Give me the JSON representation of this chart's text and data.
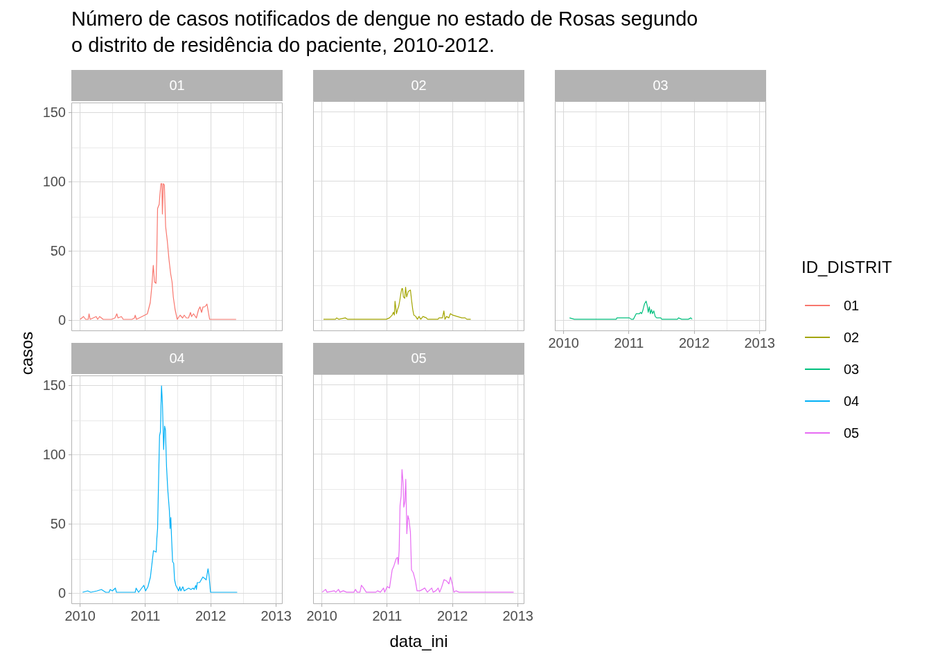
{
  "chart_data": [
    {
      "type": "other",
      "title": "Número de casos notificados de dengue no estado de Rosas segundo\no distrito de residência do paciente, 2010-2012.",
      "xlabel": "data_ini",
      "ylabel": "casos",
      "legend_title": "ID_DISTRIT"
    },
    {
      "type": "line",
      "title": "01",
      "legend": "right",
      "tick_labels": "y",
      "grid": true,
      "xlim": [
        "2009-11-13",
        "2013-02-06"
      ],
      "ylim": [
        -7.5,
        157.5
      ],
      "xticks": [
        "2010",
        {
          "value": "2010-07-02",
          "label": null
        },
        "2011",
        {
          "value": "2011-07-02",
          "label": null
        },
        "2012",
        {
          "value": "2012-07-02",
          "label": null
        },
        "2013"
      ],
      "yticks": [
        0,
        {
          "value": 25,
          "label": null
        },
        50,
        {
          "value": 75,
          "label": null
        },
        100,
        {
          "value": 125,
          "label": null
        },
        150
      ],
      "series": [
        {
          "name": "01",
          "color": "#f8766d",
          "x": [
            "2010-01-01",
            "2010-01-20",
            "2010-02-01",
            "2010-02-15",
            "2010-02-20",
            "2010-02-26",
            "2010-04-01",
            "2010-04-09",
            "2010-04-20",
            "2010-05-10",
            "2010-06-25",
            "2010-07-15",
            "2010-07-25",
            "2010-08-01",
            "2010-08-20",
            "2010-08-30",
            "2010-10-18",
            "2010-11-01",
            "2010-11-05",
            "2010-11-12",
            "2010-12-28",
            "2011-01-12",
            "2011-01-28",
            "2011-02-06",
            "2011-02-14",
            "2011-02-21",
            "2011-03-01",
            "2011-03-05",
            "2011-03-10",
            "2011-03-19",
            "2011-03-23",
            "2011-03-29",
            "2011-04-03",
            "2011-04-06",
            "2011-04-11",
            "2011-04-17",
            "2011-04-24",
            "2011-05-03",
            "2011-05-13",
            "2011-05-22",
            "2011-05-30",
            "2011-06-06",
            "2011-06-16",
            "2011-06-28",
            "2011-07-14",
            "2011-07-28",
            "2011-08-06",
            "2011-08-18",
            "2011-08-30",
            "2011-09-10",
            "2011-09-16",
            "2011-09-27",
            "2011-10-13",
            "2011-10-25",
            "2011-11-02",
            "2011-11-11",
            "2011-11-19",
            "2011-11-29",
            "2011-12-11",
            "2011-12-26",
            "2012-05-22"
          ],
          "values": [
            1,
            3,
            1,
            1,
            5,
            1,
            3,
            1,
            3,
            1,
            1,
            2,
            5,
            2,
            3,
            1,
            1,
            2,
            4,
            1,
            4,
            5,
            13,
            25,
            40,
            28,
            27,
            43,
            81,
            84,
            91,
            99,
            99,
            77,
            99,
            98,
            68,
            58,
            44,
            34,
            28,
            17,
            8,
            1,
            4,
            2,
            4,
            2,
            2,
            6,
            3,
            5,
            2,
            8,
            10,
            6,
            10,
            10,
            12,
            1,
            1
          ]
        }
      ]
    },
    {
      "type": "line",
      "title": "02",
      "legend": "right",
      "tick_labels": false,
      "grid": true,
      "xlim": [
        "2009-11-13",
        "2013-02-06"
      ],
      "ylim": [
        -7.5,
        157.5
      ],
      "xticks": [
        "2010",
        {
          "value": "2010-07-02",
          "label": null
        },
        "2011",
        {
          "value": "2011-07-02",
          "label": null
        },
        "2012",
        {
          "value": "2012-07-02",
          "label": null
        },
        "2013"
      ],
      "yticks": [
        0,
        {
          "value": 25,
          "label": null
        },
        50,
        {
          "value": 75,
          "label": null
        },
        100,
        {
          "value": 125,
          "label": null
        },
        150
      ],
      "series": [
        {
          "name": "02",
          "color": "#a3a500",
          "x": [
            "2010-01-10",
            "2010-03-18",
            "2010-03-25",
            "2010-04-06",
            "2010-05-12",
            "2010-05-25",
            "2010-12-27",
            "2011-01-14",
            "2011-01-29",
            "2011-02-05",
            "2011-02-10",
            "2011-02-14",
            "2011-02-22",
            "2011-02-28",
            "2011-03-06",
            "2011-03-12",
            "2011-03-18",
            "2011-03-24",
            "2011-03-28",
            "2011-04-02",
            "2011-04-09",
            "2011-04-14",
            "2011-04-20",
            "2011-04-29",
            "2011-05-11",
            "2011-05-18",
            "2011-05-24",
            "2011-05-30",
            "2011-06-10",
            "2011-06-19",
            "2011-06-28",
            "2011-07-08",
            "2011-07-20",
            "2011-08-08",
            "2011-08-15",
            "2011-10-12",
            "2011-10-18",
            "2011-11-06",
            "2011-11-14",
            "2011-11-20",
            "2011-11-29",
            "2011-12-12",
            "2011-12-20",
            "2012-01-02",
            "2012-01-28",
            "2012-02-22",
            "2012-03-12",
            "2012-03-21",
            "2012-04-12"
          ],
          "values": [
            1,
            1,
            2,
            1,
            2,
            1,
            1,
            2,
            4,
            6,
            4,
            14,
            5,
            8,
            10,
            14,
            19,
            23,
            23,
            17,
            16,
            24,
            17,
            21,
            22,
            14,
            8,
            4,
            3,
            1,
            3,
            1,
            3,
            2,
            1,
            1,
            2,
            2,
            7,
            1,
            3,
            2,
            5,
            4,
            3,
            2,
            2,
            1,
            1
          ]
        }
      ]
    },
    {
      "type": "line",
      "title": "03",
      "legend": "right",
      "tick_labels": "x",
      "grid": true,
      "xlim": [
        "2009-11-13",
        "2013-02-06"
      ],
      "ylim": [
        -7.5,
        157.5
      ],
      "xticks": [
        "2010",
        {
          "value": "2010-07-02",
          "label": null
        },
        "2011",
        {
          "value": "2011-07-02",
          "label": null
        },
        "2012",
        {
          "value": "2012-07-02",
          "label": null
        },
        "2013"
      ],
      "yticks": [
        0,
        {
          "value": 25,
          "label": null
        },
        50,
        {
          "value": 75,
          "label": null
        },
        100,
        {
          "value": 125,
          "label": null
        },
        150
      ],
      "series": [
        {
          "name": "03",
          "color": "#00bf7d",
          "x": [
            "2010-02-03",
            "2010-03-02",
            "2010-10-22",
            "2010-10-26",
            "2010-12-29",
            "2011-01-04",
            "2011-01-14",
            "2011-01-26",
            "2011-02-11",
            "2011-03-01",
            "2011-03-07",
            "2011-03-13",
            "2011-03-19",
            "2011-03-29",
            "2011-04-07",
            "2011-04-13",
            "2011-04-19",
            "2011-04-25",
            "2011-05-01",
            "2011-05-07",
            "2011-05-13",
            "2011-05-20",
            "2011-05-28",
            "2011-06-05",
            "2011-06-28",
            "2011-07-04",
            "2011-09-29",
            "2011-10-05",
            "2011-10-23",
            "2011-11-29",
            "2011-12-13",
            "2011-12-20"
          ],
          "values": [
            2,
            1,
            1,
            2,
            2,
            2,
            1,
            1,
            5,
            5,
            6,
            5,
            7,
            12,
            14,
            11,
            6,
            10,
            5,
            8,
            5,
            7,
            3,
            2,
            2,
            1,
            1,
            2,
            1,
            1,
            2,
            1
          ]
        }
      ]
    },
    {
      "type": "line",
      "title": "04",
      "legend": "right",
      "grid": true,
      "xlim": [
        "2009-11-13",
        "2013-02-06"
      ],
      "ylim": [
        -7.5,
        157.5
      ],
      "xticks": [
        "2010",
        {
          "value": "2010-07-02",
          "label": null
        },
        "2011",
        {
          "value": "2011-07-02",
          "label": null
        },
        "2012",
        {
          "value": "2012-07-02",
          "label": null
        },
        "2013"
      ],
      "yticks": [
        0,
        {
          "value": 25,
          "label": null
        },
        50,
        {
          "value": 75,
          "label": null
        },
        100,
        {
          "value": 125,
          "label": null
        },
        150
      ],
      "series": [
        {
          "name": "04",
          "color": "#00b0f6",
          "x": [
            "2010-01-15",
            "2010-02-12",
            "2010-03-02",
            "2010-04-06",
            "2010-04-30",
            "2010-05-24",
            "2010-06-12",
            "2010-06-18",
            "2010-06-30",
            "2010-07-17",
            "2010-07-23",
            "2010-08-16",
            "2010-11-05",
            "2010-11-10",
            "2010-11-24",
            "2010-12-23",
            "2011-01-02",
            "2011-01-15",
            "2011-01-29",
            "2011-02-06",
            "2011-02-15",
            "2011-03-02",
            "2011-03-06",
            "2011-03-10",
            "2011-03-16",
            "2011-03-21",
            "2011-03-26",
            "2011-03-29",
            "2011-04-01",
            "2011-04-06",
            "2011-04-13",
            "2011-04-18",
            "2011-04-23",
            "2011-04-29",
            "2011-05-06",
            "2011-05-15",
            "2011-05-19",
            "2011-05-23",
            "2011-05-27",
            "2011-06-02",
            "2011-06-08",
            "2011-06-13",
            "2011-06-20",
            "2011-07-06",
            "2011-07-12",
            "2011-07-18",
            "2011-07-29",
            "2011-08-06",
            "2011-08-31",
            "2011-09-12",
            "2011-09-25",
            "2011-09-30",
            "2011-10-10",
            "2011-10-13",
            "2011-10-18",
            "2011-10-31",
            "2011-11-18",
            "2011-12-07",
            "2011-12-17",
            "2011-12-22",
            "2011-12-31",
            "2012-05-28"
          ],
          "values": [
            1,
            2,
            1,
            2,
            3,
            1,
            1,
            3,
            2,
            4,
            1,
            1,
            1,
            4,
            1,
            6,
            2,
            5,
            12,
            21,
            31,
            30,
            40,
            47,
            84,
            114,
            117,
            135,
            150,
            138,
            104,
            121,
            118,
            92,
            75,
            60,
            47,
            55,
            41,
            23,
            22,
            10,
            6,
            2,
            5,
            2,
            5,
            2,
            4,
            3,
            4,
            3,
            6,
            3,
            8,
            8,
            12,
            10,
            18,
            14,
            1,
            1
          ]
        }
      ]
    },
    {
      "type": "line",
      "title": "05",
      "legend": "right",
      "tick_labels": "x",
      "grid": true,
      "xlim": [
        "2009-11-13",
        "2013-02-06"
      ],
      "ylim": [
        -7.5,
        157.5
      ],
      "xticks": [
        "2010",
        {
          "value": "2010-07-02",
          "label": null
        },
        "2011",
        {
          "value": "2011-07-02",
          "label": null
        },
        "2012",
        {
          "value": "2012-07-02",
          "label": null
        },
        "2013"
      ],
      "yticks": [
        0,
        {
          "value": 25,
          "label": null
        },
        50,
        {
          "value": 75,
          "label": null
        },
        100,
        {
          "value": 125,
          "label": null
        },
        150
      ],
      "series": [
        {
          "name": "05",
          "color": "#e76bf3",
          "x": [
            "2010-01-03",
            "2010-01-22",
            "2010-01-30",
            "2010-03-12",
            "2010-03-20",
            "2010-04-04",
            "2010-04-12",
            "2010-05-01",
            "2010-05-19",
            "2010-06-29",
            "2010-07-08",
            "2010-07-17",
            "2010-08-02",
            "2010-08-10",
            "2010-08-22",
            "2010-09-06",
            "2010-10-30",
            "2010-11-08",
            "2010-11-24",
            "2010-12-12",
            "2010-12-18",
            "2011-01-01",
            "2011-01-14",
            "2011-01-29",
            "2011-02-08",
            "2011-02-20",
            "2011-02-28",
            "2011-03-04",
            "2011-03-09",
            "2011-03-14",
            "2011-03-20",
            "2011-03-25",
            "2011-03-31",
            "2011-04-04",
            "2011-04-10",
            "2011-04-15",
            "2011-04-21",
            "2011-04-27",
            "2011-05-03",
            "2011-05-11",
            "2011-05-17",
            "2011-05-27",
            "2011-06-08",
            "2011-06-17",
            "2011-07-03",
            "2011-07-18",
            "2011-07-30",
            "2011-08-14",
            "2011-09-07",
            "2011-09-15",
            "2011-09-30",
            "2011-10-13",
            "2011-10-21",
            "2011-10-31",
            "2011-11-15",
            "2011-11-30",
            "2011-12-12",
            "2011-12-21",
            "2011-12-31",
            "2012-01-09",
            "2012-01-20",
            "2012-02-07",
            "2012-12-08"
          ],
          "values": [
            1,
            3,
            1,
            2,
            1,
            3,
            1,
            2,
            1,
            1,
            3,
            1,
            1,
            6,
            4,
            1,
            1,
            2,
            1,
            4,
            1,
            5,
            4,
            17,
            20,
            25,
            26,
            21,
            31,
            63,
            70,
            89,
            79,
            62,
            66,
            82,
            43,
            56,
            53,
            44,
            17,
            15,
            9,
            2,
            2,
            3,
            4,
            1,
            4,
            1,
            2,
            4,
            1,
            4,
            10,
            9,
            7,
            12,
            7,
            1,
            2,
            1,
            1
          ]
        }
      ]
    }
  ]
}
